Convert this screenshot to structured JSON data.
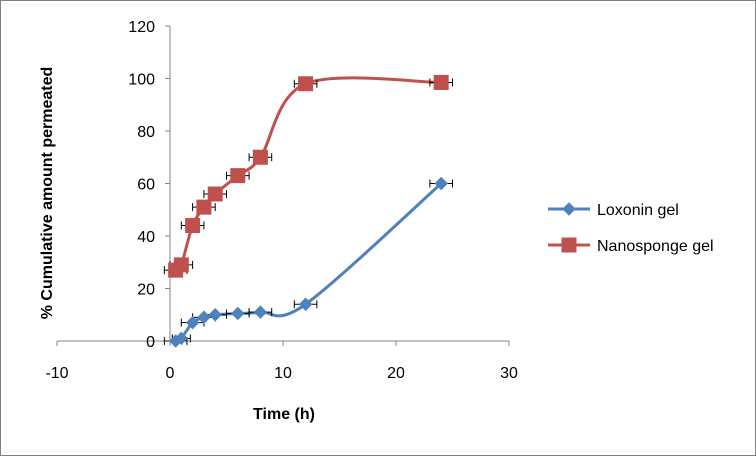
{
  "chart_data": {
    "type": "scatter",
    "title": "",
    "xlabel": "Time (h)",
    "ylabel": "% Cumulative amount permeated",
    "xlim": [
      -10,
      30
    ],
    "ylim": [
      0,
      120
    ],
    "xticks": [
      -10,
      0,
      10,
      20,
      30
    ],
    "yticks": [
      0,
      20,
      40,
      60,
      80,
      100,
      120
    ],
    "grid": false,
    "legend": "right",
    "smooth_lines": true,
    "error_bars": "horizontal",
    "series": [
      {
        "name": "Loxonin gel",
        "color": "#4f81bd",
        "marker": "diamond",
        "x": [
          0.5,
          1,
          2,
          3,
          4,
          6,
          8,
          12,
          24
        ],
        "y": [
          0,
          1,
          7,
          9,
          10,
          10.5,
          11,
          14,
          60
        ],
        "x_err": [
          1,
          0.8,
          1,
          1,
          1,
          1,
          1,
          1,
          1
        ]
      },
      {
        "name": "Nanosponge gel",
        "color": "#c0504d",
        "marker": "square",
        "x": [
          0.5,
          1,
          2,
          3,
          4,
          6,
          8,
          12,
          24
        ],
        "y": [
          27,
          29,
          44,
          51,
          56,
          63,
          70,
          98,
          98.5
        ],
        "x_err": [
          1,
          1,
          1,
          1,
          1,
          1,
          1,
          1,
          1
        ]
      }
    ]
  }
}
